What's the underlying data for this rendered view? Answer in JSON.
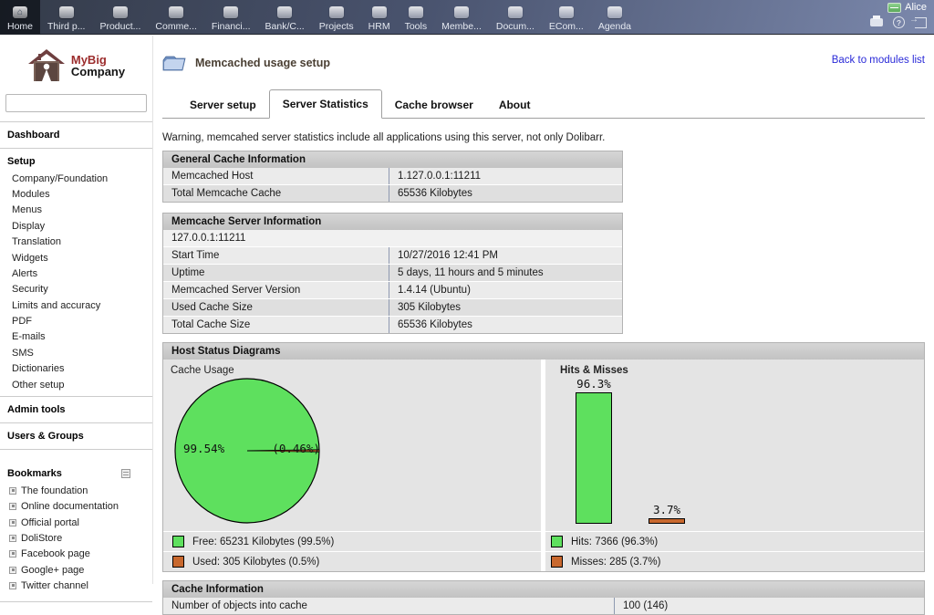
{
  "topnav": {
    "items": [
      {
        "label": "Home",
        "icon": "home-icon",
        "active": true
      },
      {
        "label": "Third p...",
        "icon": "third-parties-icon"
      },
      {
        "label": "Product...",
        "icon": "products-icon"
      },
      {
        "label": "Comme...",
        "icon": "commercial-icon"
      },
      {
        "label": "Financi...",
        "icon": "financial-icon"
      },
      {
        "label": "Bank/C...",
        "icon": "bank-cash-icon"
      },
      {
        "label": "Projects",
        "icon": "projects-icon"
      },
      {
        "label": "HRM",
        "icon": "hrm-icon"
      },
      {
        "label": "Tools",
        "icon": "tools-icon"
      },
      {
        "label": "Membe...",
        "icon": "members-icon"
      },
      {
        "label": "Docum...",
        "icon": "documents-icon"
      },
      {
        "label": "ECom...",
        "icon": "ecommerce-icon"
      },
      {
        "label": "Agenda",
        "icon": "agenda-icon"
      }
    ],
    "user_name": "Alice"
  },
  "sidebar": {
    "logo": {
      "line1": "MyBig",
      "line2": "Company"
    },
    "search": {
      "value": "",
      "placeholder": ""
    },
    "dashboard_label": "Dashboard",
    "setup": {
      "header": "Setup",
      "items": [
        "Company/Foundation",
        "Modules",
        "Menus",
        "Display",
        "Translation",
        "Widgets",
        "Alerts",
        "Security",
        "Limits and accuracy",
        "PDF",
        "E-mails",
        "SMS",
        "Dictionaries",
        "Other setup"
      ]
    },
    "admin_tools_label": "Admin tools",
    "users_groups_label": "Users & Groups",
    "bookmarks": {
      "header": "Bookmarks",
      "items": [
        "The foundation",
        "Online documentation",
        "Official portal",
        "DoliStore",
        "Facebook page",
        "Google+ page",
        "Twitter channel"
      ]
    }
  },
  "header": {
    "title": "Memcached usage setup",
    "back_link": "Back to modules list"
  },
  "tabs": {
    "items": [
      {
        "label": "Server setup",
        "active": false
      },
      {
        "label": "Server Statistics",
        "active": true
      },
      {
        "label": "Cache browser",
        "active": false
      },
      {
        "label": "About",
        "active": false
      }
    ]
  },
  "warning": "Warning, memcahed server statistics include all applications using this server, not only Dolibarr.",
  "tables": {
    "general": {
      "title": "General Cache Information",
      "rows": [
        [
          "Memcached Host",
          "1.127.0.0.1:11211"
        ],
        [
          "Total Memcache Cache",
          "65536 Kilobytes"
        ]
      ]
    },
    "server": {
      "title": "Memcache Server Information",
      "host_row": "127.0.0.1:11211",
      "rows": [
        [
          "Start Time",
          "10/27/2016 12:41 PM"
        ],
        [
          "Uptime",
          "5 days, 11 hours and 5 minutes"
        ],
        [
          "Memcached Server Version",
          "1.4.14 (Ubuntu)"
        ],
        [
          "Used Cache Size",
          "305 Kilobytes"
        ],
        [
          "Total Cache Size",
          "65536 Kilobytes"
        ]
      ]
    },
    "cache_info": {
      "title": "Cache Information",
      "rows": [
        [
          "Number of objects into cache",
          "100 (146)"
        ]
      ]
    }
  },
  "diagrams": {
    "title": "Host Status Diagrams"
  },
  "chart_data": [
    {
      "type": "pie",
      "title": "Cache Usage",
      "labels": [
        "Free",
        "Used"
      ],
      "values": [
        99.54,
        0.46
      ],
      "unit": "percent",
      "kilobytes": [
        65231,
        305
      ],
      "total_kilobytes": 65536,
      "slice_labels": [
        "99.54%",
        "(0.46%)"
      ],
      "legend": [
        "Free: 65231 Kilobytes (99.5%)",
        "Used: 305 Kilobytes (0.5%)"
      ],
      "colors": [
        "#5ee05e",
        "#c8682e"
      ],
      "legend_position": "bottom"
    },
    {
      "type": "bar",
      "title": "Hits & Misses",
      "categories": [
        "Hits",
        "Misses"
      ],
      "values": [
        96.3,
        3.7
      ],
      "unit": "percent",
      "counts": [
        7366,
        285
      ],
      "bar_labels": [
        "96.3%",
        "3.7%"
      ],
      "legend": [
        "Hits: 7366 (96.3%)",
        "Misses: 285 (3.7%)"
      ],
      "colors": [
        "#5ee05e",
        "#c8682e"
      ],
      "ylim": [
        0,
        100
      ],
      "grid": false,
      "legend_position": "bottom"
    }
  ]
}
